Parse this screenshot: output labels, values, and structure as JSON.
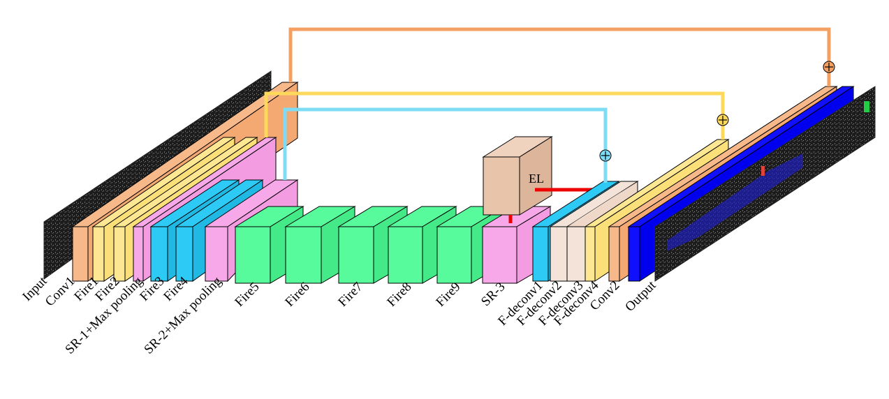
{
  "layers": {
    "input": "Input",
    "conv1": "Conv1",
    "fire1": "Fire1",
    "fire2": "Fire2",
    "sr1": "SR-1+Max pooling",
    "fire3": "Fire3",
    "fire4": "Fire4",
    "sr2": "SR-2+Max pooling",
    "fire5": "Fire5",
    "fire6": "Fire6",
    "fire7": "Fire7",
    "fire8": "Fire8",
    "fire9": "Fire9",
    "sr3": "SR-3",
    "fdeconv1": "F-deconv1",
    "fdeconv2": "F-deconv2",
    "fdeconv3": "F-deconv3",
    "fdeconv4": "F-deconv4",
    "conv2": "Conv2",
    "output": "Output"
  },
  "el_label": "EL",
  "colors": {
    "conv": "#f8b98a",
    "fire_yellow": "#fde793",
    "sr_pink": "#f7a8e8",
    "fire_cyan": "#2ccaf5",
    "fire_green": "#58fb9c",
    "deconv_beige": "#f4e3d8",
    "el_box": "#e8c4ab",
    "conv2_blue": "#0000ee",
    "skip_orange": "#f4a062",
    "skip_yellow": "#fdd85a",
    "skip_cyan": "#7fdcf5",
    "el_red": "#ee0000"
  }
}
